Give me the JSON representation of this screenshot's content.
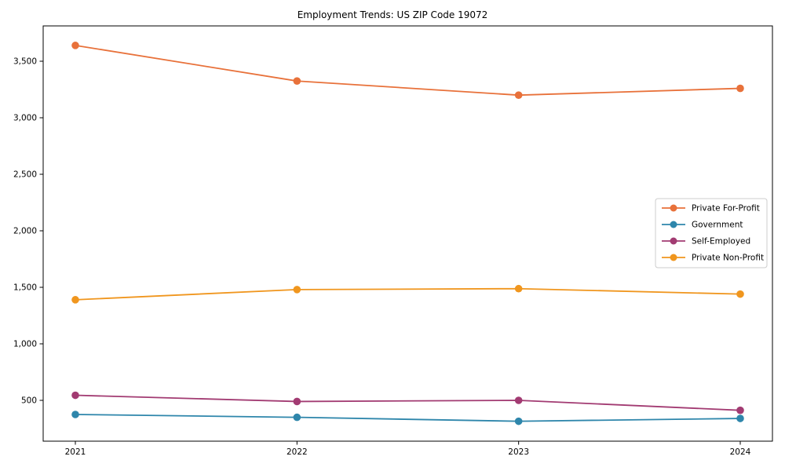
{
  "chart_data": {
    "type": "line",
    "title": "Employment Trends: US ZIP Code 19072",
    "xlabel": "",
    "ylabel": "",
    "grid": false,
    "marker": "circle",
    "legend_position": "center-right",
    "categories": [
      "2021",
      "2022",
      "2023",
      "2024"
    ],
    "series": [
      {
        "name": "Private For-Profit",
        "color": "#e8713a",
        "values": [
          3640,
          3325,
          3200,
          3260
        ]
      },
      {
        "name": "Government",
        "color": "#2e86ab",
        "values": [
          375,
          350,
          315,
          340
        ]
      },
      {
        "name": "Self-Employed",
        "color": "#a23b72",
        "values": [
          545,
          490,
          500,
          412
        ]
      },
      {
        "name": "Private Non-Profit",
        "color": "#f0961e",
        "values": [
          1390,
          1480,
          1488,
          1440
        ]
      }
    ],
    "yticks": [
      500,
      1000,
      1500,
      2000,
      2500,
      3000,
      3500
    ],
    "ytick_labels": [
      "500",
      "1,000",
      "1,500",
      "2,000",
      "2,500",
      "3,000",
      "3,500"
    ],
    "ylim": [
      139,
      3812
    ],
    "axis_color": "#000000",
    "legend_border_color": "#cccccc",
    "background_color": "#ffffff"
  }
}
